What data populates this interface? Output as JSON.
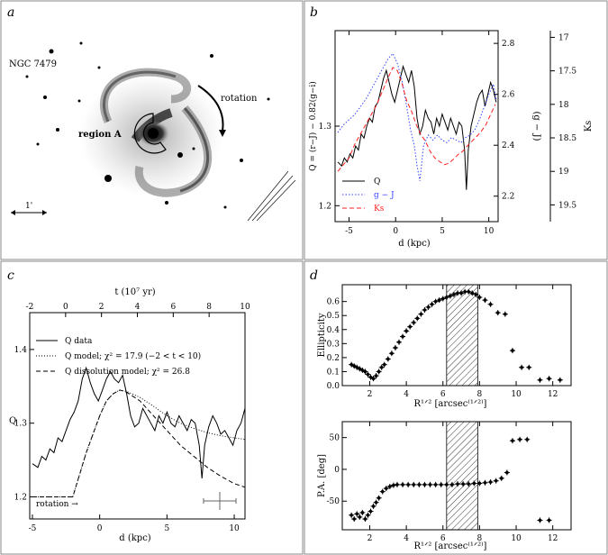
{
  "panels": {
    "a": {
      "label": "a",
      "galaxy_name": "NGC 7479",
      "rotation_label": "rotation",
      "region_label": "region A",
      "scale_label": "1'"
    },
    "b": {
      "label": "b",
      "xlabel": "d (kpc)",
      "ylabel_left": "Q = (r−J) − 0.82(g−i)",
      "ylabel_mid": "(g − J)",
      "ylabel_right": "Ks",
      "legend": [
        {
          "name": "Q",
          "color": "#000000",
          "dash": "solid"
        },
        {
          "name": "g − J",
          "color": "#3344ff",
          "dash": "dotted"
        },
        {
          "name": "Ks",
          "color": "#ff2020",
          "dash": "dashed"
        }
      ]
    },
    "c": {
      "label": "c",
      "top_axis_label": "t (10⁷ yr)",
      "xlabel": "d (kpc)",
      "ylabel": "Q",
      "rotation_label": "rotation →",
      "legend": [
        {
          "name": "Q data",
          "dash": "solid"
        },
        {
          "name": "Q model; χ² = 17.9 (−2 < t < 10)",
          "dash": "dotted"
        },
        {
          "name": "Q dissolution model; χ² = 26.8",
          "dash": "dashed"
        }
      ]
    },
    "d": {
      "label": "d",
      "top_ylabel": "Ellipticity",
      "bottom_ylabel": "P.A. [deg]",
      "xlabel": "R¹ᐟ² [arcsec⁽¹ᐟ²⁾]"
    }
  },
  "chart_data": [
    {
      "id": "b",
      "type": "line",
      "xlim": [
        -6.5,
        11
      ],
      "x_ticks": [
        -5,
        0,
        5,
        10
      ],
      "left_ylim": [
        1.18,
        1.42
      ],
      "left_ticks": [
        1.2,
        1.3
      ],
      "mid_ylim": [
        2.1,
        2.85
      ],
      "mid_ticks": [
        2.2,
        2.4,
        2.6,
        2.8
      ],
      "right_ylim": [
        19.75,
        16.9
      ],
      "right_ticks": [
        17,
        17.5,
        18,
        18.5,
        19,
        19.5
      ],
      "series": [
        {
          "name": "Q",
          "axis": "left",
          "x": [
            -6.2,
            -5.8,
            -5.5,
            -5.2,
            -4.9,
            -4.6,
            -4.3,
            -4.0,
            -3.7,
            -3.4,
            -3.1,
            -2.8,
            -2.5,
            -2.2,
            -1.9,
            -1.6,
            -1.3,
            -1.0,
            -0.7,
            -0.4,
            -0.1,
            0.2,
            0.5,
            0.8,
            1.1,
            1.4,
            1.7,
            2.0,
            2.3,
            2.6,
            2.9,
            3.2,
            3.5,
            3.8,
            4.1,
            4.4,
            4.7,
            5.0,
            5.3,
            5.6,
            5.9,
            6.2,
            6.5,
            6.8,
            7.1,
            7.4,
            7.6,
            7.8,
            8.1,
            8.4,
            8.7,
            9.0,
            9.3,
            9.6,
            9.9,
            10.2,
            10.5,
            10.8
          ],
          "y": [
            1.255,
            1.25,
            1.26,
            1.255,
            1.265,
            1.26,
            1.275,
            1.27,
            1.29,
            1.285,
            1.3,
            1.31,
            1.305,
            1.325,
            1.33,
            1.345,
            1.36,
            1.37,
            1.355,
            1.34,
            1.33,
            1.345,
            1.36,
            1.375,
            1.365,
            1.355,
            1.37,
            1.35,
            1.31,
            1.29,
            1.3,
            1.32,
            1.31,
            1.305,
            1.29,
            1.31,
            1.3,
            1.315,
            1.305,
            1.295,
            1.31,
            1.3,
            1.29,
            1.305,
            1.3,
            1.27,
            1.22,
            1.27,
            1.3,
            1.315,
            1.33,
            1.34,
            1.345,
            1.325,
            1.34,
            1.355,
            1.345,
            1.33
          ]
        },
        {
          "name": "g − J",
          "axis": "mid",
          "x": [
            -6.2,
            -5.6,
            -5.0,
            -4.4,
            -3.8,
            -3.2,
            -2.6,
            -2.0,
            -1.4,
            -0.8,
            -0.3,
            0.2,
            0.7,
            1.2,
            1.6,
            2.0,
            2.3,
            2.6,
            3.0,
            3.5,
            4.0,
            4.5,
            5.0,
            5.5,
            6.0,
            6.5,
            7.0,
            7.5,
            8.0,
            8.5,
            9.0,
            9.5,
            10.0,
            10.5,
            10.8
          ],
          "y": [
            2.45,
            2.48,
            2.5,
            2.52,
            2.55,
            2.58,
            2.62,
            2.66,
            2.7,
            2.74,
            2.76,
            2.72,
            2.65,
            2.55,
            2.46,
            2.4,
            2.32,
            2.26,
            2.4,
            2.44,
            2.42,
            2.44,
            2.42,
            2.41,
            2.43,
            2.42,
            2.41,
            2.43,
            2.44,
            2.46,
            2.5,
            2.55,
            2.6,
            2.64,
            2.58
          ]
        },
        {
          "name": "Ks",
          "axis": "right",
          "x": [
            -6.2,
            -5.6,
            -5.0,
            -4.4,
            -3.8,
            -3.2,
            -2.6,
            -2.0,
            -1.4,
            -0.8,
            -0.3,
            0.2,
            0.7,
            1.2,
            1.7,
            2.2,
            2.7,
            3.2,
            3.7,
            4.2,
            4.7,
            5.2,
            5.7,
            6.2,
            6.7,
            7.2,
            7.7,
            8.2,
            8.7,
            9.2,
            9.7,
            10.2,
            10.7
          ],
          "y": [
            19.0,
            18.9,
            18.8,
            18.6,
            18.45,
            18.3,
            18.15,
            18.0,
            17.8,
            17.6,
            17.45,
            17.5,
            17.7,
            17.95,
            18.1,
            18.3,
            18.45,
            18.55,
            18.7,
            18.8,
            18.85,
            18.9,
            18.88,
            18.82,
            18.75,
            18.7,
            18.62,
            18.55,
            18.48,
            18.4,
            18.3,
            18.15,
            18.0
          ]
        }
      ]
    },
    {
      "id": "c",
      "type": "line",
      "xlim": [
        -5.2,
        10.8
      ],
      "x_ticks": [
        -5,
        0,
        5,
        10
      ],
      "t_ticks": [
        -2,
        0,
        2,
        4,
        6,
        8,
        10
      ],
      "ylim": [
        1.17,
        1.45
      ],
      "y_ticks": [
        1.2,
        1.3,
        1.4
      ],
      "series": [
        {
          "name": "Q data",
          "x": [
            -5.0,
            -4.6,
            -4.3,
            -4.0,
            -3.7,
            -3.4,
            -3.1,
            -2.8,
            -2.5,
            -2.2,
            -1.9,
            -1.6,
            -1.3,
            -1.0,
            -0.7,
            -0.4,
            -0.1,
            0.2,
            0.5,
            0.8,
            1.1,
            1.4,
            1.7,
            2.0,
            2.3,
            2.6,
            2.9,
            3.2,
            3.5,
            3.8,
            4.1,
            4.4,
            4.7,
            5.0,
            5.3,
            5.6,
            5.9,
            6.2,
            6.5,
            6.8,
            7.1,
            7.4,
            7.6,
            7.8,
            8.1,
            8.4,
            8.7,
            9.0,
            9.3,
            9.6,
            9.9,
            10.2,
            10.5,
            10.8
          ],
          "y": [
            1.245,
            1.24,
            1.255,
            1.25,
            1.265,
            1.26,
            1.28,
            1.275,
            1.29,
            1.305,
            1.315,
            1.33,
            1.36,
            1.375,
            1.355,
            1.34,
            1.33,
            1.345,
            1.36,
            1.37,
            1.36,
            1.355,
            1.365,
            1.34,
            1.31,
            1.295,
            1.3,
            1.32,
            1.31,
            1.3,
            1.29,
            1.31,
            1.3,
            1.315,
            1.3,
            1.295,
            1.31,
            1.3,
            1.29,
            1.305,
            1.3,
            1.27,
            1.225,
            1.27,
            1.295,
            1.31,
            1.3,
            1.285,
            1.29,
            1.28,
            1.27,
            1.29,
            1.3,
            1.32
          ]
        },
        {
          "name": "Q model",
          "x": [
            -5.0,
            -3.0,
            -2.0,
            -1.5,
            -1.0,
            -0.5,
            0.0,
            0.5,
            1.0,
            1.5,
            2.0,
            3.0,
            4.0,
            5.0,
            6.0,
            7.0,
            8.0,
            9.0,
            10.0,
            10.8
          ],
          "y": [
            1.2,
            1.2,
            1.2,
            1.23,
            1.26,
            1.285,
            1.31,
            1.33,
            1.34,
            1.345,
            1.343,
            1.335,
            1.323,
            1.31,
            1.3,
            1.293,
            1.287,
            1.283,
            1.28,
            1.278
          ]
        },
        {
          "name": "Q dissolution model",
          "x": [
            -5.0,
            -3.0,
            -2.0,
            -1.5,
            -1.0,
            -0.5,
            0.0,
            0.5,
            1.0,
            1.5,
            2.0,
            3.0,
            4.0,
            5.0,
            6.0,
            7.0,
            8.0,
            9.0,
            10.0,
            10.8
          ],
          "y": [
            1.2,
            1.2,
            1.2,
            1.23,
            1.26,
            1.285,
            1.31,
            1.33,
            1.34,
            1.345,
            1.342,
            1.33,
            1.31,
            1.29,
            1.27,
            1.255,
            1.24,
            1.228,
            1.218,
            1.213
          ]
        }
      ]
    },
    {
      "id": "d-top",
      "type": "scatter",
      "xlim": [
        0.5,
        13
      ],
      "x_ticks": [
        2,
        4,
        6,
        8,
        10,
        12
      ],
      "ylim": [
        0,
        0.72
      ],
      "y_ticks": [
        0,
        0.1,
        0.2,
        0.3,
        0.4,
        0.5,
        0.6
      ],
      "shaded_band": [
        6.2,
        7.9
      ],
      "x": [
        1.0,
        1.15,
        1.3,
        1.45,
        1.6,
        1.75,
        1.9,
        2.05,
        2.2,
        2.35,
        2.5,
        2.65,
        2.8,
        3.0,
        3.2,
        3.4,
        3.6,
        3.8,
        4.0,
        4.2,
        4.4,
        4.6,
        4.8,
        5.0,
        5.2,
        5.4,
        5.6,
        5.8,
        6.0,
        6.2,
        6.4,
        6.6,
        6.8,
        7.0,
        7.2,
        7.4,
        7.6,
        7.8,
        8.0,
        8.3,
        8.6,
        9.0,
        9.4,
        9.8,
        10.3,
        10.7,
        11.3,
        11.8,
        12.4
      ],
      "y": [
        0.15,
        0.14,
        0.13,
        0.12,
        0.11,
        0.1,
        0.08,
        0.06,
        0.05,
        0.07,
        0.1,
        0.13,
        0.15,
        0.19,
        0.23,
        0.27,
        0.31,
        0.35,
        0.39,
        0.42,
        0.45,
        0.48,
        0.51,
        0.54,
        0.56,
        0.58,
        0.6,
        0.61,
        0.62,
        0.63,
        0.64,
        0.65,
        0.66,
        0.66,
        0.67,
        0.67,
        0.66,
        0.65,
        0.63,
        0.61,
        0.58,
        0.52,
        0.51,
        0.25,
        0.13,
        0.13,
        0.04,
        0.05,
        0.04
      ]
    },
    {
      "id": "d-bottom",
      "type": "scatter",
      "xlim": [
        0.5,
        13
      ],
      "x_ticks": [
        2,
        4,
        6,
        8,
        10,
        12
      ],
      "ylim": [
        -95,
        75
      ],
      "y_ticks": [
        -50,
        0,
        50
      ],
      "shaded_band": [
        6.2,
        7.9
      ],
      "x": [
        1.0,
        1.15,
        1.3,
        1.45,
        1.6,
        1.75,
        1.9,
        2.05,
        2.2,
        2.35,
        2.5,
        2.7,
        2.9,
        3.1,
        3.3,
        3.5,
        3.8,
        4.1,
        4.4,
        4.7,
        5.0,
        5.3,
        5.6,
        5.9,
        6.2,
        6.5,
        6.8,
        7.1,
        7.4,
        7.7,
        8.0,
        8.3,
        8.6,
        8.9,
        9.2,
        9.5,
        9.8,
        10.2,
        10.6,
        11.3,
        11.8
      ],
      "y": [
        -72,
        -78,
        -70,
        -75,
        -68,
        -78,
        -72,
        -66,
        -58,
        -52,
        -45,
        -35,
        -30,
        -27,
        -25,
        -24,
        -24,
        -24,
        -24,
        -24,
        -24,
        -24,
        -24,
        -24,
        -24,
        -24,
        -23,
        -23,
        -23,
        -22,
        -22,
        -21,
        -20,
        -18,
        -14,
        -5,
        45,
        47,
        47,
        -80,
        -80
      ]
    }
  ]
}
